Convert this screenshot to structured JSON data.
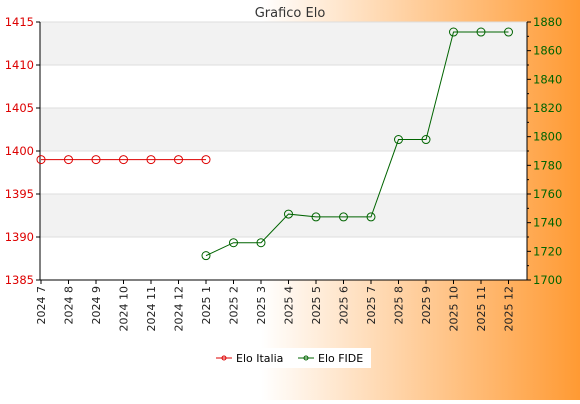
{
  "chart_data": {
    "type": "line",
    "title": "Grafico Elo",
    "categories": [
      "2024 7",
      "2024 8",
      "2024 9",
      "2024 10",
      "2024 11",
      "2024 12",
      "2025 1",
      "2025 2",
      "2025 3",
      "2025 4",
      "2025 5",
      "2025 6",
      "2025 7",
      "2025 8",
      "2025 9",
      "2025 10",
      "2025 11",
      "2025 12"
    ],
    "series": [
      {
        "name": "Elo Italia",
        "axis": "left",
        "color": "#dd0000",
        "values": [
          1399,
          1399,
          1399,
          1399,
          1399,
          1399,
          1399,
          null,
          null,
          null,
          null,
          null,
          null,
          null,
          null,
          null,
          null,
          null
        ]
      },
      {
        "name": "Elo FIDE",
        "axis": "right",
        "color": "#006400",
        "values": [
          null,
          null,
          null,
          null,
          null,
          null,
          1717,
          1726,
          1726,
          1746,
          1744,
          1744,
          1744,
          1798,
          1798,
          1873,
          1873,
          1873
        ]
      }
    ],
    "y_left": {
      "range": [
        1385,
        1415
      ],
      "ticks": [
        1385,
        1390,
        1395,
        1400,
        1405,
        1410,
        1415
      ],
      "color": "#dd0000"
    },
    "y_right": {
      "range": [
        1700,
        1880
      ],
      "ticks": [
        1700,
        1720,
        1740,
        1760,
        1780,
        1800,
        1820,
        1840,
        1860,
        1880
      ],
      "color": "#006400"
    },
    "grid": true,
    "legend_placement": "bottom",
    "background_colors": {
      "start": "#ffffff",
      "end": "#ff9a33"
    }
  }
}
